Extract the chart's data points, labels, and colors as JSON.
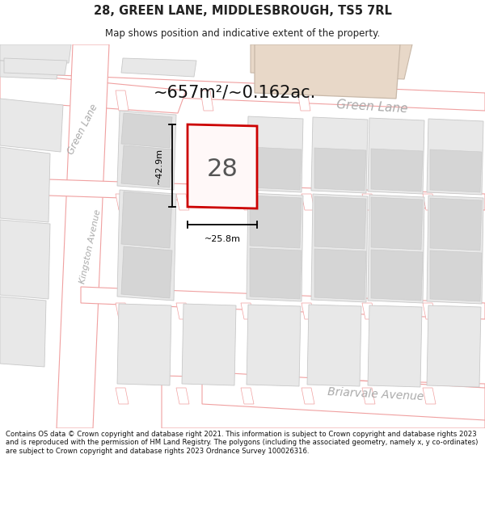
{
  "title": "28, GREEN LANE, MIDDLESBROUGH, TS5 7RL",
  "subtitle": "Map shows position and indicative extent of the property.",
  "area_text": "~657m²/~0.162ac.",
  "dim_width": "~25.8m",
  "dim_height": "~42.9m",
  "label_28": "28",
  "street_green_lane_top": "Green Lane",
  "street_green_lane_left": "Green Lane",
  "street_kingston": "Kingston Avenue",
  "street_briarvale": "Briarvale Avenue",
  "footer": "Contains OS data © Crown copyright and database right 2021. This information is subject to Crown copyright and database rights 2023 and is reproduced with the permission of HM Land Registry. The polygons (including the associated geometry, namely x, y co-ordinates) are subject to Crown copyright and database rights 2023 Ordnance Survey 100026316.",
  "bg_color": "#ffffff",
  "block_fill": "#e8e8e8",
  "block_stroke": "#c8c8c8",
  "road_stroke": "#f0a0a0",
  "property_fill": "#fff8f8",
  "property_stroke": "#cc0000",
  "tan_fill": "#e8d8c8",
  "tan_stroke": "#c8b8a8",
  "street_color": "#aaaaaa",
  "footer_color": "#111111",
  "title_color": "#222222"
}
